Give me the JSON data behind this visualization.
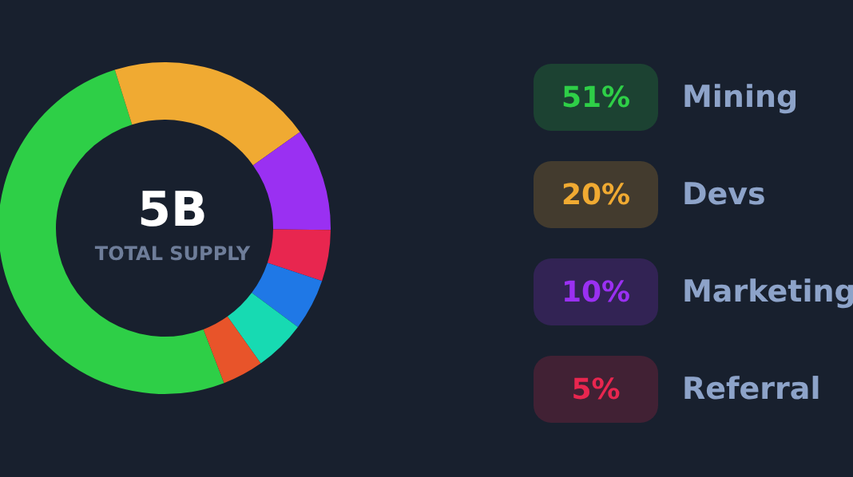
{
  "chart_data": {
    "type": "donut",
    "title": "5B",
    "subtitle": "TOTAL SUPPLY",
    "categories": [
      "Mining",
      "Devs",
      "Marketing",
      "Referral",
      null,
      null,
      null
    ],
    "values": [
      51,
      20,
      10,
      5,
      5,
      5,
      4
    ],
    "colors": [
      "#2ecf47",
      "#f0aa32",
      "#9a30f2",
      "#e8264f",
      "#1f78e6",
      "#17dab2",
      "#e8542a"
    ],
    "value_labels": [
      "51%",
      "20%",
      "10%",
      "5%",
      null,
      null,
      null
    ],
    "legend": "right"
  }
}
